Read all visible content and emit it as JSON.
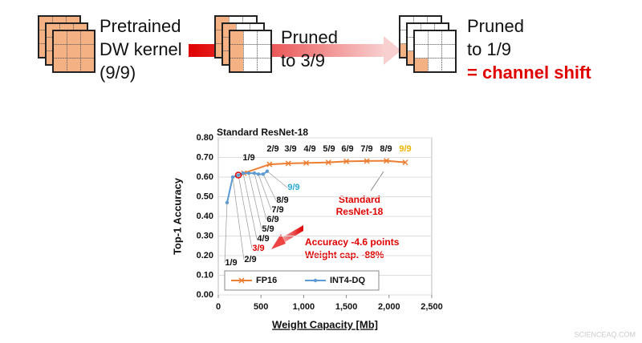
{
  "diagram": {
    "steps": [
      {
        "lines": [
          "Pretrained",
          "DW kernel",
          "(9/9)"
        ]
      },
      {
        "lines": [
          "Pruned",
          "to 3/9"
        ]
      },
      {
        "lines": [
          "Pruned",
          "to 1/9"
        ],
        "highlight": "= channel shift"
      }
    ]
  },
  "chart_data": {
    "type": "line",
    "top_label": "Standard ResNet-18",
    "x_label": "Weight Capacity [Mb]",
    "y_label": "Top-1 Accuracy",
    "xlim": [
      0,
      2500
    ],
    "xticks": [
      0,
      500,
      {
        "value": 1000,
        "label": "1,000"
      },
      {
        "value": 1500,
        "label": "1,500"
      },
      {
        "value": 2000,
        "label": "2,000"
      },
      {
        "value": 2500,
        "label": "2,500"
      }
    ],
    "ylim": [
      0,
      0.8
    ],
    "yticks": [
      {
        "value": 0,
        "label": "0.00"
      },
      {
        "value": 0.1,
        "label": "0.10"
      },
      {
        "value": 0.2,
        "label": "0.20"
      },
      {
        "value": 0.3,
        "label": "0.30"
      },
      {
        "value": 0.4,
        "label": "0.40"
      },
      {
        "value": 0.5,
        "label": "0.50"
      },
      {
        "value": 0.6,
        "label": "0.60"
      },
      {
        "value": 0.7,
        "label": "0.70"
      },
      {
        "value": 0.8,
        "label": "0.80"
      }
    ],
    "series": [
      {
        "name": "FP16",
        "color": "#ed7d31",
        "marker": "x",
        "x": [
          300,
          600,
          820,
          1030,
          1290,
          1500,
          1740,
          1970,
          2190
        ],
        "values": [
          0.62,
          0.665,
          0.67,
          0.672,
          0.675,
          0.68,
          0.682,
          0.683,
          0.675
        ],
        "labels": [
          "1/9",
          "2/9",
          "3/9",
          "4/9",
          "5/9",
          "6/9",
          "7/9",
          "8/9",
          "9/9"
        ]
      },
      {
        "name": "INT4-DQ",
        "color": "#5b9bd5",
        "marker": "dot",
        "x": [
          103,
          169,
          235,
          291,
          357,
          423,
          470,
          526,
          573
        ],
        "values": [
          0.47,
          0.6,
          0.61,
          0.62,
          0.62,
          0.62,
          0.615,
          0.615,
          0.63
        ],
        "labels": [
          "1/9",
          "2/9",
          "3/9",
          "4/9",
          "5/9",
          "6/9",
          "7/9",
          "8/9",
          "9/9"
        ]
      }
    ],
    "annotations": [
      "Standard",
      "ResNet-18",
      "Accuracy -4.6 points",
      "Weight cap. -88%"
    ],
    "legend": "bottom"
  },
  "watermark": "SCIENCEAQ.COM"
}
